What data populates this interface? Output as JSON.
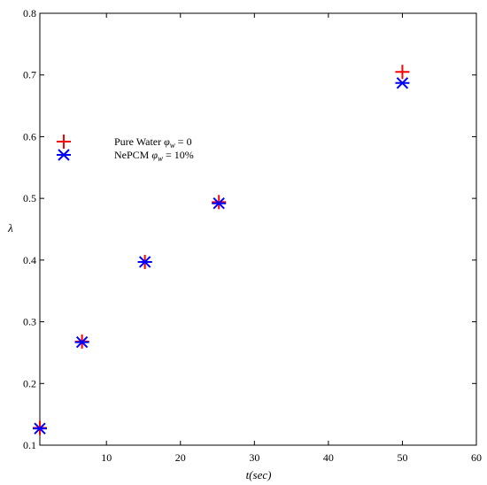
{
  "chart_data": {
    "type": "scatter",
    "xlabel": "t(sec)",
    "ylabel": "λ",
    "xlim": [
      1,
      60
    ],
    "ylim": [
      0.1,
      0.8
    ],
    "xticks": [
      10,
      20,
      30,
      40,
      50,
      60
    ],
    "yticks": [
      0.1,
      0.2,
      0.3,
      0.4,
      0.5,
      0.6,
      0.7,
      0.8
    ],
    "xtick_labels": [
      "10",
      "20",
      "30",
      "40",
      "50",
      "60"
    ],
    "ytick_labels": [
      "0.1",
      "0.2",
      "0.3",
      "0.4",
      "0.5",
      "0.6",
      "0.7",
      "0.8"
    ],
    "grid": false,
    "legend_position": "upper-left, inside plot",
    "series": [
      {
        "name": "Pure Water φw = 0",
        "marker": "plus",
        "color": "#ff0000",
        "points": [
          {
            "x": 1,
            "y": 0.128
          },
          {
            "x": 6.7,
            "y": 0.268
          },
          {
            "x": 15.2,
            "y": 0.397
          },
          {
            "x": 25.2,
            "y": 0.494
          },
          {
            "x": 50,
            "y": 0.705
          }
        ]
      },
      {
        "name": "NePCM φw = 10%",
        "marker": "asterisk",
        "color": "#0000ff",
        "points": [
          {
            "x": 1,
            "y": 0.127
          },
          {
            "x": 6.7,
            "y": 0.267
          },
          {
            "x": 15.2,
            "y": 0.397
          },
          {
            "x": 25.2,
            "y": 0.492
          },
          {
            "x": 50,
            "y": 0.687
          }
        ]
      }
    ],
    "legend": [
      {
        "series": 0,
        "prefix": "Pure Water ",
        "symbol": "φ",
        "sub": "w",
        "suffix": " = 0"
      },
      {
        "series": 1,
        "prefix": "NePCM ",
        "symbol": "φ",
        "sub": "w",
        "suffix": " = 10%"
      }
    ]
  }
}
